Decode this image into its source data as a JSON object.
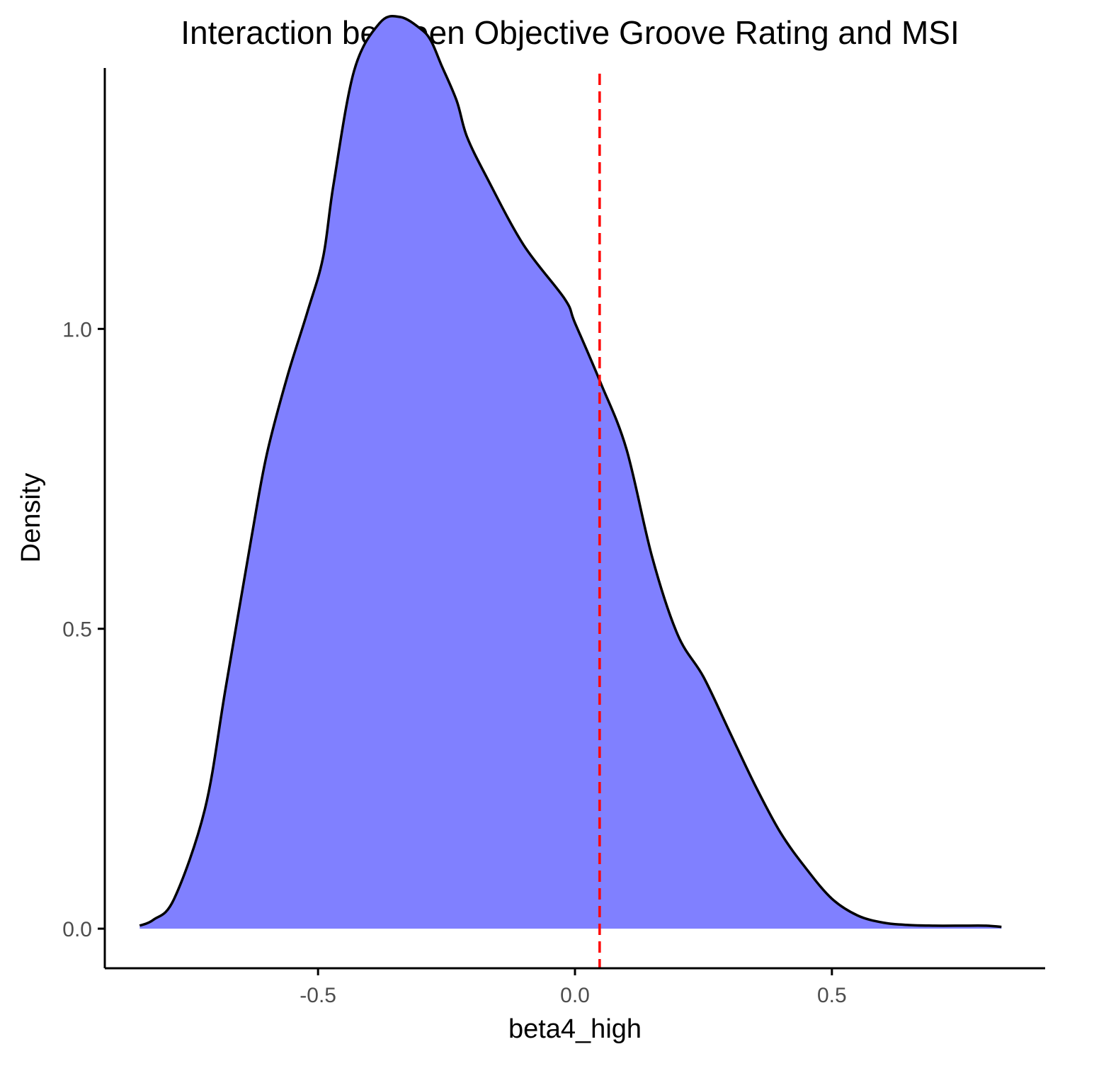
{
  "chart_data": {
    "type": "area",
    "title": "Interaction between Objective Groove Rating and MSI",
    "xlabel": "beta4_high",
    "ylabel": "Density",
    "xlim": [
      -0.915,
      0.915
    ],
    "ylim": [
      -0.066,
      1.435
    ],
    "x_ticks": [
      -0.5,
      0.0,
      0.5
    ],
    "x_tick_labels": [
      "-0.5",
      "0.0",
      "0.5"
    ],
    "y_ticks": [
      0.0,
      0.5,
      1.0
    ],
    "y_tick_labels": [
      "0.0",
      "0.5",
      "1.0"
    ],
    "grid": false,
    "series": [
      {
        "fill": "#8080ff",
        "line_color": "#000000",
        "x": [
          -0.847,
          -0.82,
          -0.78,
          -0.72,
          -0.68,
          -0.63,
          -0.6,
          -0.56,
          -0.52,
          -0.49,
          -0.47,
          -0.43,
          -0.38,
          -0.34,
          -0.3,
          -0.28,
          -0.26,
          -0.23,
          -0.21,
          -0.17,
          -0.1,
          -0.02,
          0.0,
          0.05,
          0.1,
          0.15,
          0.2,
          0.25,
          0.3,
          0.35,
          0.4,
          0.45,
          0.5,
          0.55,
          0.6,
          0.65,
          0.7,
          0.75,
          0.8,
          0.83
        ],
        "y": [
          0.005,
          0.015,
          0.05,
          0.2,
          0.4,
          0.65,
          0.79,
          0.92,
          1.03,
          1.12,
          1.24,
          1.43,
          1.51,
          1.52,
          1.5,
          1.48,
          1.44,
          1.38,
          1.32,
          1.25,
          1.14,
          1.05,
          1.01,
          0.91,
          0.8,
          0.62,
          0.49,
          0.42,
          0.33,
          0.24,
          0.16,
          0.1,
          0.05,
          0.022,
          0.01,
          0.006,
          0.005,
          0.005,
          0.005,
          0.003
        ]
      }
    ],
    "reference_line": {
      "x": 0.048,
      "color": "#ff0000",
      "style": "dashed"
    }
  }
}
